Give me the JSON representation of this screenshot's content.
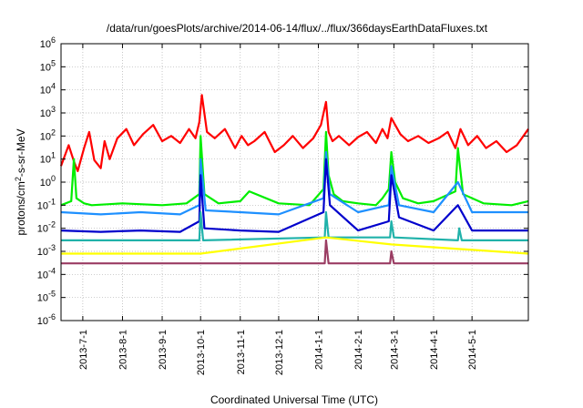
{
  "chart_data": {
    "type": "area",
    "title": "/data/run/goesPlots/archive/2014-06-14/flux/../flux/366daysEarthDataFluxes.txt",
    "xlabel": "Coordinated Universal Time (UTC)",
    "ylabel_main": "protons/cm",
    "ylabel_sup": "2",
    "ylabel_tail": "-s-sr-MeV",
    "y_scale": "log",
    "ylim": [
      1e-06,
      1000000.0
    ],
    "xlim": [
      "2013-06-14",
      "2014-06-14"
    ],
    "grid": true,
    "y_ticks": [
      {
        "base": "10",
        "exp": "-6",
        "value": 1e-06
      },
      {
        "base": "10",
        "exp": "-5",
        "value": 1e-05
      },
      {
        "base": "10",
        "exp": "-4",
        "value": 0.0001
      },
      {
        "base": "10",
        "exp": "-3",
        "value": 0.001
      },
      {
        "base": "10",
        "exp": "-2",
        "value": 0.01
      },
      {
        "base": "10",
        "exp": "-1",
        "value": 0.1
      },
      {
        "base": "10",
        "exp": "0",
        "value": 1
      },
      {
        "base": "10",
        "exp": "1",
        "value": 10
      },
      {
        "base": "10",
        "exp": "2",
        "value": 100
      },
      {
        "base": "10",
        "exp": "3",
        "value": 1000
      },
      {
        "base": "10",
        "exp": "4",
        "value": 10000
      },
      {
        "base": "10",
        "exp": "5",
        "value": 100000
      },
      {
        "base": "10",
        "exp": "6",
        "value": 1000000
      }
    ],
    "x_ticks": [
      "2013-7-1",
      "2013-8-1",
      "2013-9-1",
      "2013-10-1",
      "2013-11-1",
      "2013-12-1",
      "2014-1-1",
      "2014-2-1",
      "2014-3-1",
      "2014-4-1",
      "2014-5-1"
    ],
    "channel_colors": [
      "#ff0000",
      "#00ee00",
      "#1e90ff",
      "#0000cc",
      "#20b2aa",
      "#ffff00",
      "#9b3d63"
    ],
    "series": [
      {
        "color": "#ff0000",
        "x": [
          "2013-06-14",
          "2013-06-20",
          "2013-06-24",
          "2013-06-27",
          "2013-07-02",
          "2013-07-06",
          "2013-07-10",
          "2013-07-15",
          "2013-07-18",
          "2013-07-22",
          "2013-07-28",
          "2013-08-04",
          "2013-08-10",
          "2013-08-17",
          "2013-08-25",
          "2013-09-01",
          "2013-09-08",
          "2013-09-15",
          "2013-09-22",
          "2013-09-27",
          "2013-09-30",
          "2013-10-02",
          "2013-10-06",
          "2013-10-12",
          "2013-10-20",
          "2013-10-28",
          "2013-11-02",
          "2013-11-07",
          "2013-11-12",
          "2013-11-20",
          "2013-11-28",
          "2013-12-05",
          "2013-12-12",
          "2013-12-20",
          "2013-12-28",
          "2014-01-03",
          "2014-01-07",
          "2014-01-09",
          "2014-01-12",
          "2014-01-17",
          "2014-01-25",
          "2014-02-01",
          "2014-02-08",
          "2014-02-15",
          "2014-02-20",
          "2014-02-24",
          "2014-02-27",
          "2014-03-02",
          "2014-03-06",
          "2014-03-12",
          "2014-03-20",
          "2014-03-28",
          "2014-04-05",
          "2014-04-12",
          "2014-04-18",
          "2014-04-22",
          "2014-04-28",
          "2014-05-05",
          "2014-05-12",
          "2014-05-20",
          "2014-05-28",
          "2014-06-05",
          "2014-06-14"
        ],
        "y": [
          5,
          40,
          8,
          3,
          30,
          150,
          9,
          4,
          60,
          10,
          80,
          200,
          40,
          120,
          300,
          60,
          100,
          50,
          200,
          80,
          400,
          6000,
          150,
          80,
          200,
          30,
          100,
          40,
          60,
          150,
          20,
          40,
          100,
          30,
          80,
          300,
          3000,
          150,
          60,
          100,
          40,
          90,
          150,
          50,
          200,
          80,
          600,
          300,
          120,
          60,
          100,
          50,
          80,
          150,
          30,
          200,
          40,
          100,
          30,
          60,
          20,
          40,
          200
        ]
      },
      {
        "color": "#00ee00",
        "x": [
          "2013-06-14",
          "2013-06-22",
          "2013-06-24",
          "2013-06-26",
          "2013-07-02",
          "2013-07-08",
          "2013-08-01",
          "2013-09-01",
          "2013-09-20",
          "2013-09-30",
          "2013-10-01",
          "2013-10-04",
          "2013-10-15",
          "2013-11-01",
          "2013-11-08",
          "2013-12-01",
          "2013-12-25",
          "2014-01-05",
          "2014-01-07",
          "2014-01-09",
          "2014-01-13",
          "2014-01-20",
          "2014-02-01",
          "2014-02-15",
          "2014-02-20",
          "2014-02-25",
          "2014-02-27",
          "2014-03-02",
          "2014-03-08",
          "2014-03-20",
          "2014-04-01",
          "2014-04-18",
          "2014-04-20",
          "2014-04-24",
          "2014-05-10",
          "2014-06-01",
          "2014-06-14"
        ],
        "y": [
          0.1,
          0.15,
          10,
          0.2,
          0.12,
          0.1,
          0.12,
          0.1,
          0.12,
          0.3,
          100,
          0.3,
          0.12,
          0.15,
          0.4,
          0.12,
          0.1,
          0.5,
          150,
          2,
          0.3,
          0.15,
          0.12,
          0.1,
          0.2,
          0.5,
          20,
          1,
          0.2,
          0.12,
          0.15,
          0.4,
          30,
          0.3,
          0.12,
          0.1,
          0.15
        ]
      },
      {
        "color": "#1e90ff",
        "x": [
          "2013-06-14",
          "2013-07-15",
          "2013-08-15",
          "2013-09-15",
          "2013-09-30",
          "2013-10-01",
          "2013-10-05",
          "2013-11-01",
          "2013-12-01",
          "2014-01-05",
          "2014-01-07",
          "2014-01-10",
          "2014-02-01",
          "2014-02-25",
          "2014-02-27",
          "2014-03-05",
          "2014-04-01",
          "2014-04-20",
          "2014-05-01",
          "2014-06-14"
        ],
        "y": [
          0.05,
          0.04,
          0.05,
          0.04,
          0.1,
          10,
          0.06,
          0.05,
          0.04,
          0.2,
          20,
          0.3,
          0.05,
          0.1,
          5,
          0.1,
          0.05,
          1,
          0.05,
          0.05
        ]
      },
      {
        "color": "#0000cc",
        "x": [
          "2013-06-14",
          "2013-07-15",
          "2013-08-15",
          "2013-09-15",
          "2013-09-30",
          "2013-10-01",
          "2013-10-04",
          "2013-11-01",
          "2013-12-01",
          "2014-01-05",
          "2014-01-07",
          "2014-01-10",
          "2014-02-01",
          "2014-02-25",
          "2014-02-27",
          "2014-03-05",
          "2014-04-01",
          "2014-04-20",
          "2014-05-01",
          "2014-06-14"
        ],
        "y": [
          0.008,
          0.007,
          0.008,
          0.007,
          0.02,
          2,
          0.01,
          0.008,
          0.007,
          0.05,
          10,
          0.1,
          0.008,
          0.02,
          2,
          0.03,
          0.008,
          0.1,
          0.008,
          0.008
        ]
      },
      {
        "color": "#20b2aa",
        "x": [
          "2013-06-14",
          "2013-09-30",
          "2013-10-01",
          "2013-10-03",
          "2014-01-06",
          "2014-01-07",
          "2014-01-09",
          "2014-02-26",
          "2014-02-27",
          "2014-03-01",
          "2014-04-20",
          "2014-04-21",
          "2014-04-23",
          "2014-06-14"
        ],
        "y": [
          0.003,
          0.003,
          0.05,
          0.003,
          0.004,
          0.05,
          0.004,
          0.004,
          0.02,
          0.004,
          0.003,
          0.01,
          0.003,
          0.003
        ]
      },
      {
        "color": "#ffff00",
        "x": [
          "2013-06-14",
          "2013-10-01",
          "2014-01-07",
          "2014-02-27",
          "2014-06-14"
        ],
        "y": [
          0.0008,
          0.0008,
          0.004,
          0.002,
          0.0008
        ]
      },
      {
        "color": "#9b3d63",
        "x": [
          "2013-06-14",
          "2014-01-06",
          "2014-01-07",
          "2014-01-09",
          "2014-02-26",
          "2014-02-27",
          "2014-03-01",
          "2014-06-14"
        ],
        "y": [
          0.0003,
          0.0003,
          0.003,
          0.0003,
          0.0003,
          0.001,
          0.0003,
          0.0003
        ]
      }
    ]
  }
}
